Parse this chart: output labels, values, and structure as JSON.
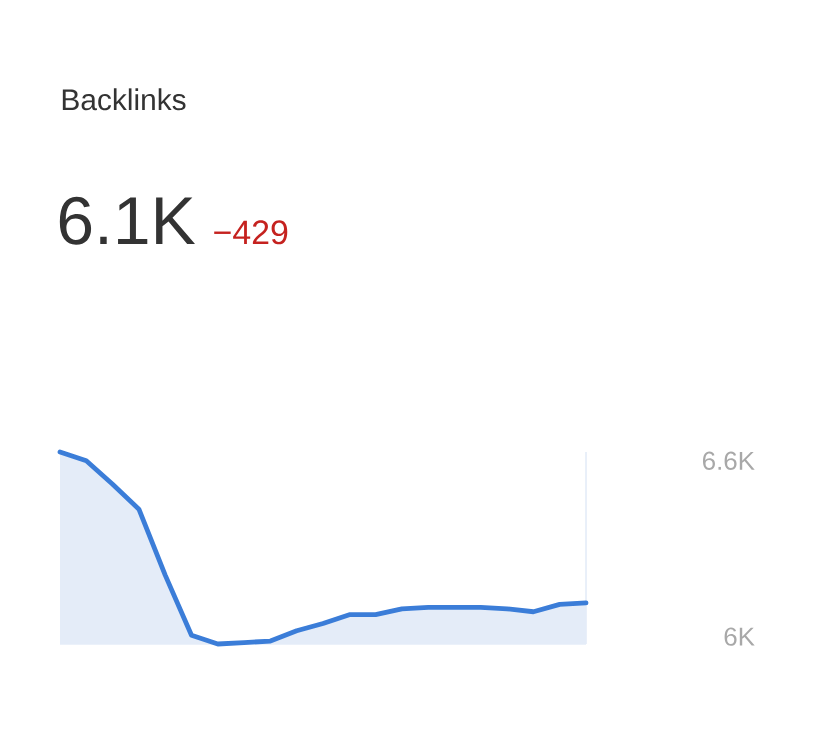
{
  "chart_data": {
    "type": "area",
    "title": "Backlinks",
    "subtitle": "6.1K",
    "annotations": [
      "−429"
    ],
    "categories": [
      null,
      null,
      null,
      null,
      null,
      null,
      null,
      null,
      null,
      null,
      null,
      null,
      null,
      null,
      null,
      null,
      null,
      null,
      null,
      null,
      null
    ],
    "values": [
      6630,
      6600,
      6520,
      6435,
      6210,
      6005,
      5975,
      5980,
      5985,
      6020,
      6045,
      6075,
      6075,
      6095,
      6100,
      6100,
      6100,
      6095,
      6085,
      6110,
      6115
    ],
    "color": "#3b7dd8",
    "ylim": [
      5975,
      6630
    ],
    "yticks": [
      {
        "value": 6000,
        "label": "6K"
      },
      {
        "value": 6600,
        "label": "6.6K"
      }
    ],
    "tick_labels": "y"
  }
}
